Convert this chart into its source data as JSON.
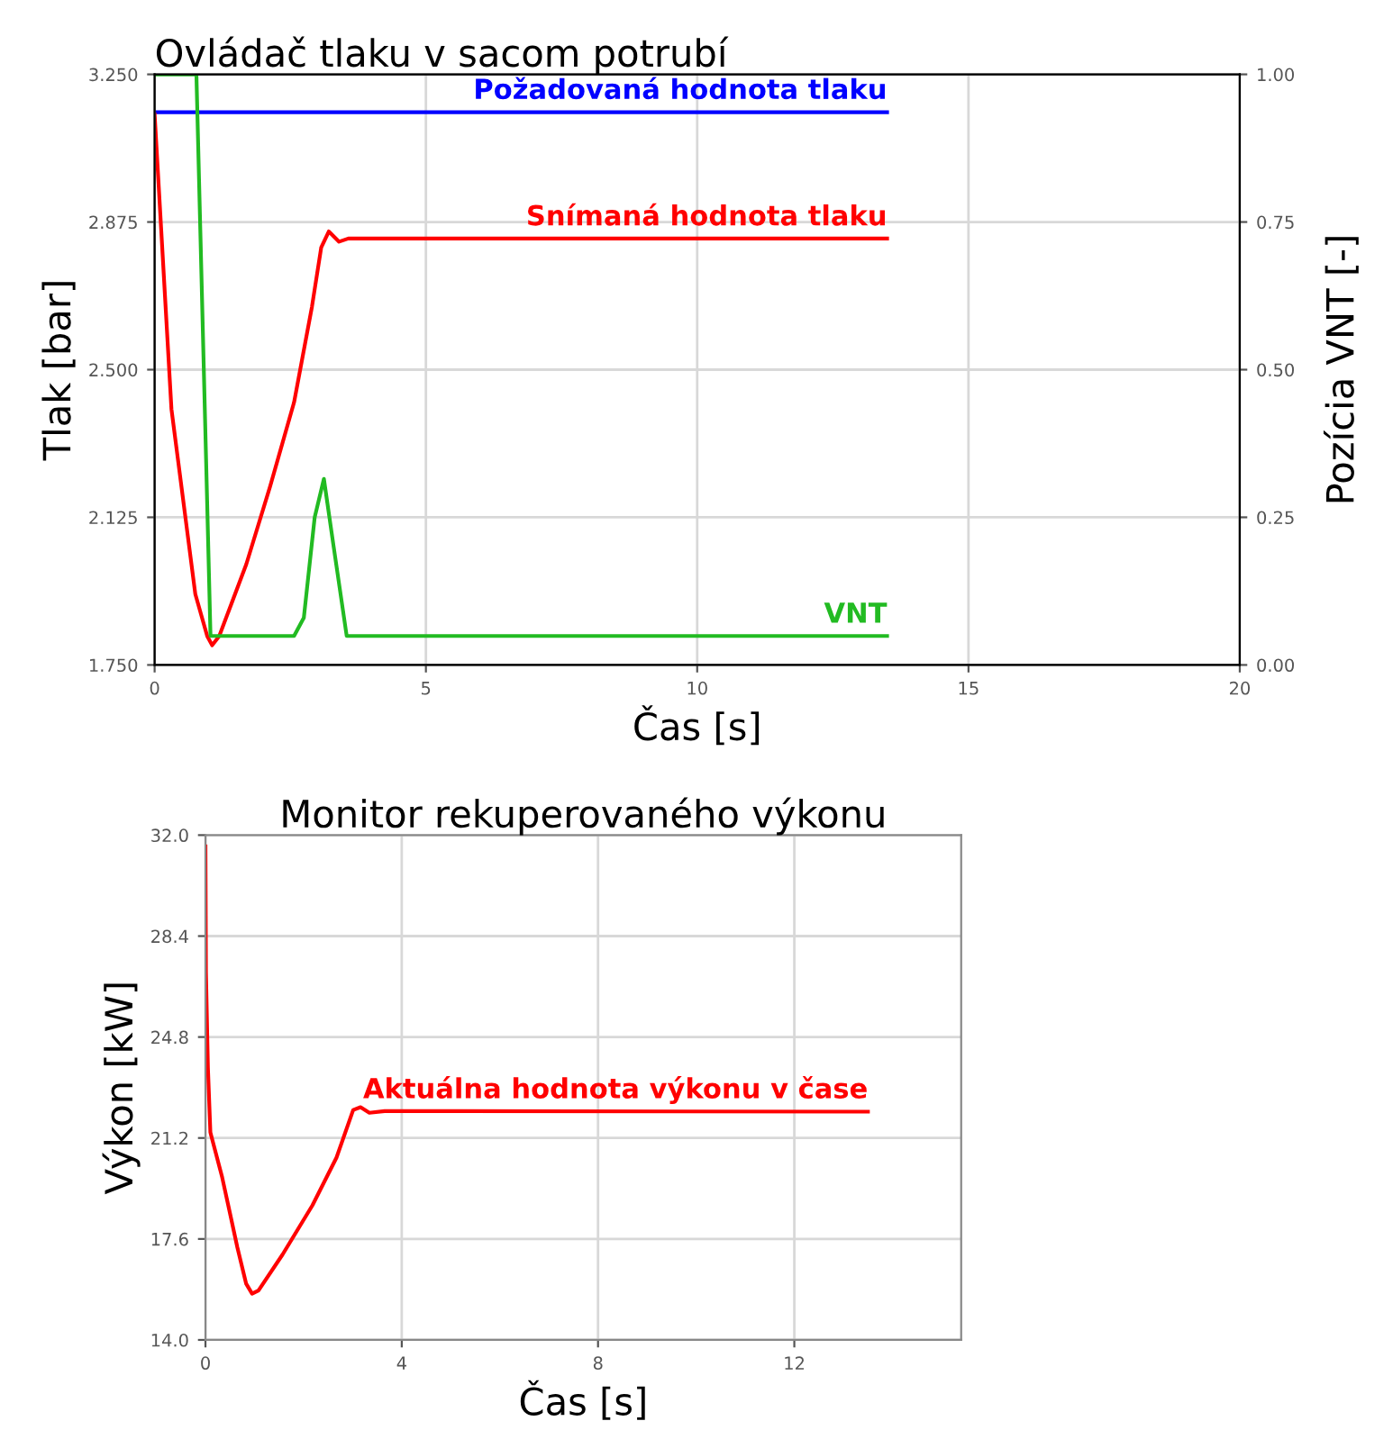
{
  "chart_data": [
    {
      "type": "line",
      "title": "Ovládač tlaku v sacom potrubí",
      "xlabel": "Čas [s]",
      "ylabel": "Tlak [bar]",
      "y2label": "Pozícia VNT [-]",
      "grid": true,
      "legend": false,
      "marker": "none",
      "line_style": "solid",
      "xlim": [
        0,
        20
      ],
      "xticks": [
        0,
        5,
        10,
        15,
        20
      ],
      "ylim": [
        1.75,
        3.25
      ],
      "yticks": [
        {
          "value": 1.75,
          "label": "1.750"
        },
        {
          "value": 2.125,
          "label": "2.125"
        },
        {
          "value": 2.5,
          "label": "2.500"
        },
        {
          "value": 2.875,
          "label": "2.875"
        },
        {
          "value": 3.25,
          "label": "3.250"
        }
      ],
      "y2lim": [
        0,
        1
      ],
      "y2ticks": [
        {
          "value": 0,
          "label": "0.00"
        },
        {
          "value": 0.25,
          "label": "0.25"
        },
        {
          "value": 0.5,
          "label": "0.50"
        },
        {
          "value": 0.75,
          "label": "0.75"
        },
        {
          "value": 1,
          "label": "1.00"
        }
      ],
      "series": [
        {
          "name": "Požadovaná hodnota tlaku",
          "color": "#0000ff",
          "x": [
            0,
            13.5
          ],
          "values": [
            3.154,
            3.154
          ]
        },
        {
          "name": "Snímaná hodnota tlaku",
          "color": "#ff0000",
          "x": [
            0,
            0.31,
            0.75,
            0.97,
            1.06,
            1.19,
            1.69,
            2.13,
            2.57,
            2.9,
            3.07,
            3.21,
            3.4,
            3.57,
            13.5
          ],
          "values": [
            3.148,
            2.4,
            1.93,
            1.823,
            1.8,
            1.823,
            2.006,
            2.204,
            2.417,
            2.66,
            2.81,
            2.851,
            2.825,
            2.833,
            2.833
          ]
        },
        {
          "name": "VNT",
          "color": "#22bb22",
          "axis": "y2",
          "x": [
            0,
            0.77,
            1.03,
            2.57,
            2.75,
            2.95,
            3.12,
            3.3,
            3.54,
            13.5
          ],
          "values": [
            1.0,
            1.0,
            0.049,
            0.049,
            0.08,
            0.25,
            0.315,
            0.2,
            0.049,
            0.049
          ]
        }
      ]
    },
    {
      "type": "line",
      "title": "Monitor rekuperovaného výkonu",
      "xlabel": "Čas [s]",
      "ylabel": "Výkon [kW]",
      "grid": true,
      "legend": false,
      "marker": "none",
      "line_style": "solid",
      "xlim": [
        0,
        15.4
      ],
      "xticks": [
        0,
        4,
        8,
        12
      ],
      "ylim": [
        14,
        32
      ],
      "yticks": [
        {
          "value": 14,
          "label": "14.0"
        },
        {
          "value": 17.6,
          "label": "17.6"
        },
        {
          "value": 21.2,
          "label": "21.2"
        },
        {
          "value": 24.8,
          "label": "24.8"
        },
        {
          "value": 28.4,
          "label": "28.4"
        },
        {
          "value": 32,
          "label": "32.0"
        }
      ],
      "series": [
        {
          "name": "Aktuálna hodnota výkonu v čase",
          "color": "#ff0000",
          "x": [
            0,
            0.01,
            0.05,
            0.1,
            0.34,
            0.65,
            0.83,
            0.95,
            1.08,
            1.57,
            2.18,
            2.67,
            3.01,
            3.16,
            3.34,
            3.65,
            13.5
          ],
          "values": [
            31.6,
            27.1,
            23.7,
            21.4,
            19.8,
            17.3,
            16.0,
            15.65,
            15.76,
            17.04,
            18.8,
            20.5,
            22.2,
            22.3,
            22.1,
            22.16,
            22.14
          ]
        }
      ]
    }
  ]
}
